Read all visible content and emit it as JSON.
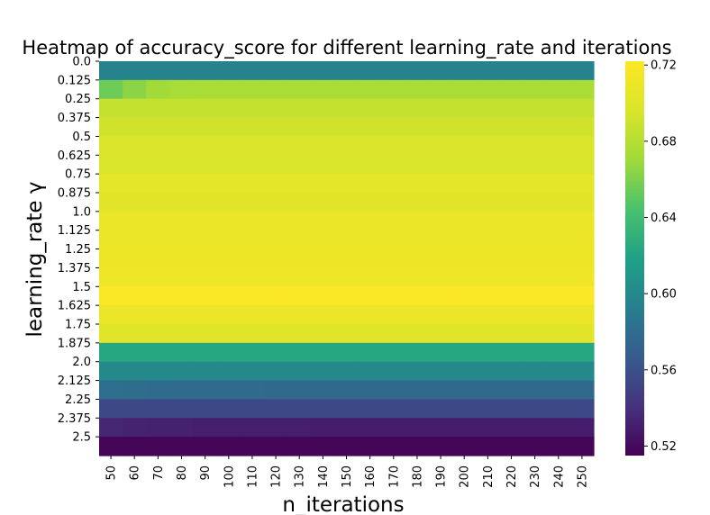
{
  "chart_data": {
    "type": "heatmap",
    "title": "Heatmap of accuracy_score for different learning_rate and iterations",
    "xlabel": "n_iterations",
    "ylabel": "learning_rate γ",
    "x_categories": [
      "50",
      "60",
      "70",
      "80",
      "90",
      "100",
      "110",
      "120",
      "130",
      "140",
      "150",
      "160",
      "170",
      "180",
      "190",
      "200",
      "210",
      "220",
      "230",
      "240",
      "250"
    ],
    "y_categories": [
      "0.0",
      "0.125",
      "0.25",
      "0.375",
      "0.5",
      "0.625",
      "0.75",
      "0.875",
      "1.0",
      "1.125",
      "1.25",
      "1.375",
      "1.5",
      "1.625",
      "1.75",
      "1.875",
      "2.0",
      "2.125",
      "2.25",
      "2.375",
      "2.5"
    ],
    "values": [
      [
        0.595,
        0.595,
        0.595,
        0.595,
        0.595,
        0.595,
        0.595,
        0.595,
        0.595,
        0.595,
        0.595,
        0.595,
        0.595,
        0.595,
        0.595,
        0.595,
        0.595,
        0.595,
        0.595,
        0.595,
        0.595
      ],
      [
        0.655,
        0.664,
        0.671,
        0.674,
        0.675,
        0.675,
        0.675,
        0.675,
        0.675,
        0.675,
        0.675,
        0.675,
        0.675,
        0.675,
        0.675,
        0.675,
        0.675,
        0.675,
        0.675,
        0.675,
        0.675
      ],
      [
        0.687,
        0.687,
        0.687,
        0.687,
        0.687,
        0.687,
        0.687,
        0.687,
        0.687,
        0.687,
        0.687,
        0.687,
        0.687,
        0.687,
        0.687,
        0.687,
        0.687,
        0.687,
        0.687,
        0.687,
        0.687
      ],
      [
        0.692,
        0.692,
        0.692,
        0.692,
        0.692,
        0.692,
        0.692,
        0.692,
        0.692,
        0.692,
        0.692,
        0.692,
        0.692,
        0.692,
        0.692,
        0.692,
        0.692,
        0.692,
        0.692,
        0.692,
        0.692
      ],
      [
        0.697,
        0.697,
        0.697,
        0.697,
        0.697,
        0.697,
        0.697,
        0.697,
        0.697,
        0.697,
        0.697,
        0.697,
        0.697,
        0.697,
        0.697,
        0.697,
        0.697,
        0.697,
        0.697,
        0.697,
        0.697
      ],
      [
        0.696,
        0.696,
        0.696,
        0.696,
        0.696,
        0.696,
        0.696,
        0.696,
        0.696,
        0.696,
        0.696,
        0.696,
        0.696,
        0.696,
        0.696,
        0.696,
        0.696,
        0.696,
        0.696,
        0.696,
        0.696
      ],
      [
        0.703,
        0.703,
        0.703,
        0.703,
        0.703,
        0.703,
        0.703,
        0.703,
        0.703,
        0.703,
        0.703,
        0.703,
        0.703,
        0.703,
        0.703,
        0.703,
        0.703,
        0.703,
        0.703,
        0.703,
        0.703
      ],
      [
        0.702,
        0.702,
        0.702,
        0.702,
        0.702,
        0.702,
        0.702,
        0.702,
        0.702,
        0.702,
        0.702,
        0.702,
        0.702,
        0.702,
        0.702,
        0.702,
        0.702,
        0.702,
        0.702,
        0.702,
        0.702
      ],
      [
        0.708,
        0.708,
        0.708,
        0.708,
        0.708,
        0.708,
        0.708,
        0.708,
        0.708,
        0.708,
        0.708,
        0.708,
        0.708,
        0.708,
        0.708,
        0.708,
        0.708,
        0.708,
        0.708,
        0.708,
        0.708
      ],
      [
        0.709,
        0.709,
        0.709,
        0.709,
        0.709,
        0.709,
        0.709,
        0.709,
        0.709,
        0.709,
        0.709,
        0.709,
        0.709,
        0.709,
        0.709,
        0.709,
        0.709,
        0.709,
        0.709,
        0.709,
        0.709
      ],
      [
        0.71,
        0.71,
        0.71,
        0.71,
        0.71,
        0.71,
        0.71,
        0.71,
        0.71,
        0.71,
        0.71,
        0.71,
        0.71,
        0.71,
        0.71,
        0.71,
        0.71,
        0.71,
        0.71,
        0.71,
        0.71
      ],
      [
        0.712,
        0.712,
        0.712,
        0.712,
        0.712,
        0.712,
        0.712,
        0.712,
        0.712,
        0.712,
        0.712,
        0.712,
        0.712,
        0.712,
        0.712,
        0.712,
        0.712,
        0.712,
        0.712,
        0.712,
        0.712
      ],
      [
        0.72,
        0.72,
        0.72,
        0.72,
        0.72,
        0.72,
        0.72,
        0.72,
        0.72,
        0.72,
        0.72,
        0.72,
        0.72,
        0.72,
        0.72,
        0.72,
        0.72,
        0.72,
        0.72,
        0.72,
        0.72
      ],
      [
        0.709,
        0.709,
        0.709,
        0.709,
        0.709,
        0.709,
        0.709,
        0.709,
        0.709,
        0.709,
        0.709,
        0.709,
        0.709,
        0.709,
        0.709,
        0.709,
        0.709,
        0.709,
        0.709,
        0.709,
        0.709
      ],
      [
        0.701,
        0.701,
        0.701,
        0.701,
        0.701,
        0.701,
        0.701,
        0.701,
        0.701,
        0.701,
        0.701,
        0.701,
        0.701,
        0.701,
        0.701,
        0.701,
        0.701,
        0.701,
        0.701,
        0.701,
        0.701
      ],
      [
        0.623,
        0.623,
        0.623,
        0.623,
        0.623,
        0.623,
        0.623,
        0.623,
        0.623,
        0.623,
        0.623,
        0.623,
        0.623,
        0.623,
        0.623,
        0.623,
        0.623,
        0.623,
        0.623,
        0.623,
        0.623
      ],
      [
        0.6,
        0.6,
        0.6,
        0.6,
        0.6,
        0.6,
        0.6,
        0.6,
        0.6,
        0.6,
        0.6,
        0.6,
        0.6,
        0.6,
        0.6,
        0.6,
        0.6,
        0.6,
        0.6,
        0.6,
        0.6
      ],
      [
        0.58,
        0.579,
        0.578,
        0.577,
        0.577,
        0.577,
        0.577,
        0.576,
        0.576,
        0.576,
        0.576,
        0.576,
        0.576,
        0.576,
        0.576,
        0.576,
        0.576,
        0.576,
        0.576,
        0.576,
        0.576
      ],
      [
        0.555,
        0.555,
        0.555,
        0.555,
        0.555,
        0.555,
        0.555,
        0.555,
        0.555,
        0.555,
        0.555,
        0.555,
        0.555,
        0.555,
        0.555,
        0.555,
        0.555,
        0.555,
        0.555,
        0.555,
        0.555
      ],
      [
        0.535,
        0.533,
        0.532,
        0.532,
        0.531,
        0.531,
        0.531,
        0.531,
        0.531,
        0.53,
        0.53,
        0.53,
        0.53,
        0.53,
        0.53,
        0.53,
        0.53,
        0.53,
        0.53,
        0.53,
        0.53
      ],
      [
        0.517,
        0.517,
        0.517,
        0.517,
        0.517,
        0.517,
        0.517,
        0.517,
        0.517,
        0.517,
        0.517,
        0.517,
        0.517,
        0.517,
        0.517,
        0.517,
        0.517,
        0.517,
        0.517,
        0.517,
        0.517
      ]
    ],
    "colormap": "viridis",
    "colorbar": {
      "vmin": 0.515,
      "vmax": 0.722,
      "ticks": [
        "0.52",
        "0.56",
        "0.60",
        "0.64",
        "0.68",
        "0.72"
      ],
      "tick_values": [
        0.52,
        0.56,
        0.6,
        0.64,
        0.68,
        0.72
      ]
    },
    "grid": false,
    "legend": "colorbar-right"
  }
}
